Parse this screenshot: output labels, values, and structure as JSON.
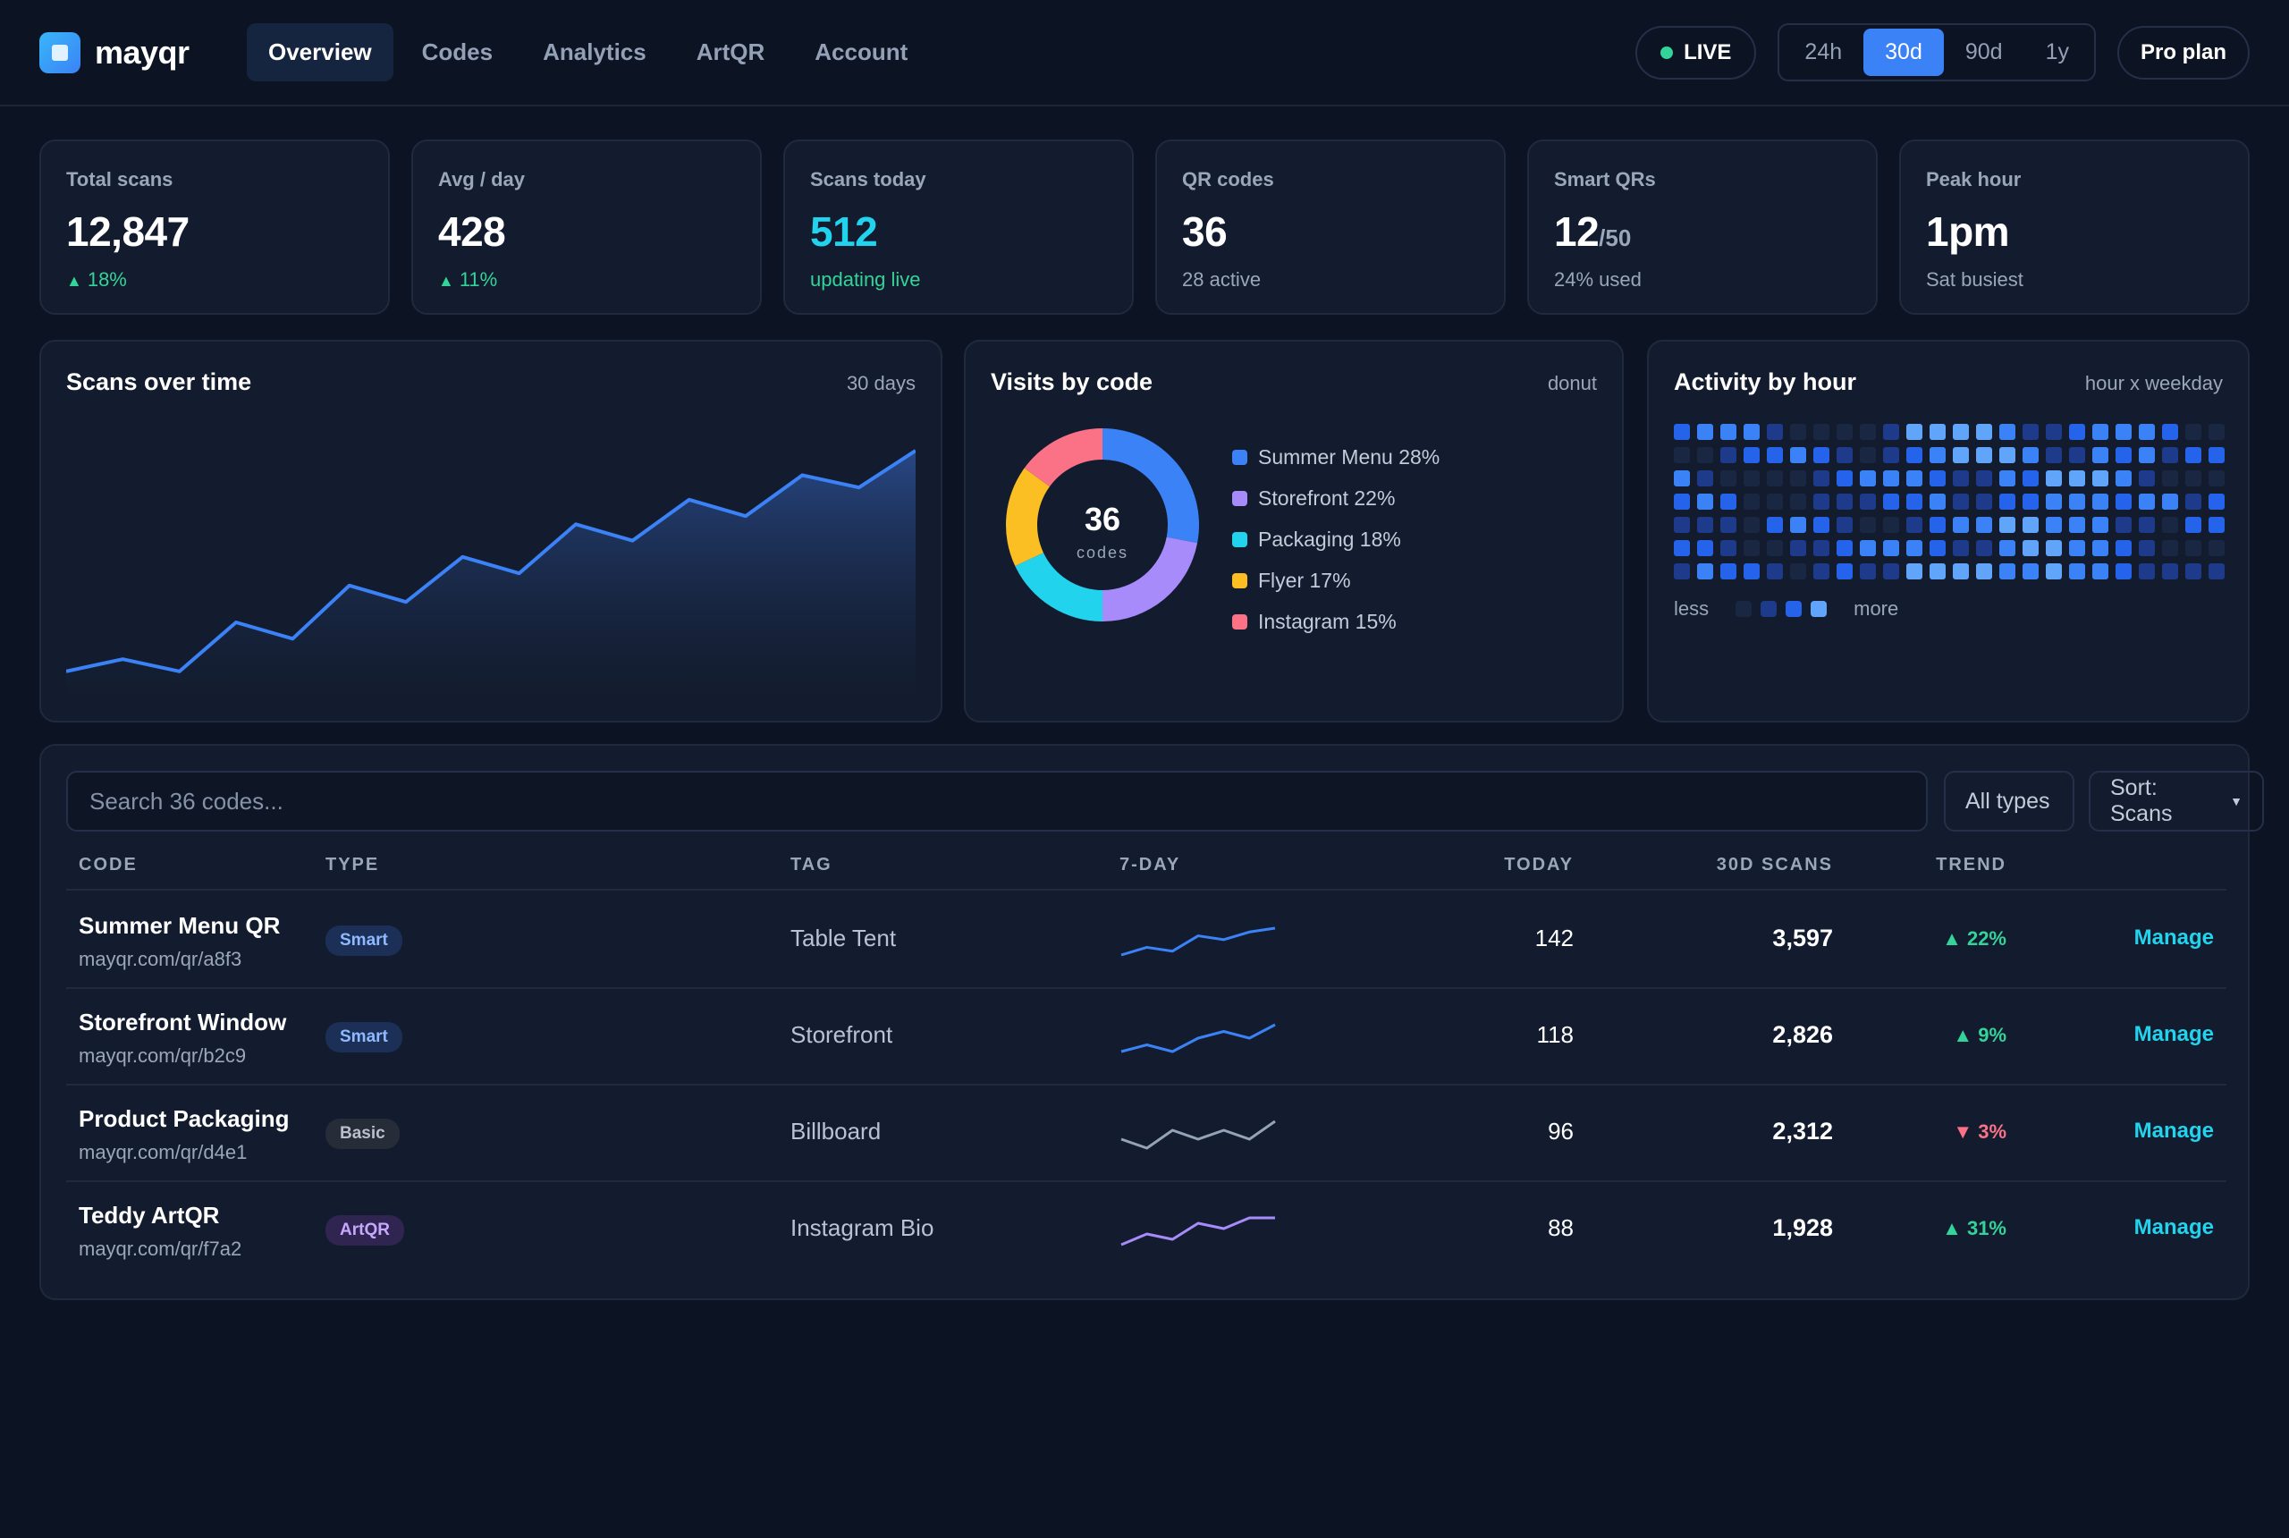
{
  "brand": {
    "name": "mayqr"
  },
  "nav": [
    {
      "label": "Overview",
      "active": true
    },
    {
      "label": "Codes",
      "active": false
    },
    {
      "label": "Analytics",
      "active": false
    },
    {
      "label": "ArtQR",
      "active": false
    },
    {
      "label": "Account",
      "active": false
    }
  ],
  "live": {
    "label": "LIVE"
  },
  "ranges": [
    {
      "label": "24h",
      "active": false
    },
    {
      "label": "30d",
      "active": true
    },
    {
      "label": "90d",
      "active": false
    },
    {
      "label": "1y",
      "active": false
    }
  ],
  "plan": {
    "label": "Pro plan"
  },
  "kpis": [
    {
      "label": "Total scans",
      "value": "12,847",
      "sub": "",
      "note": "18%",
      "note_up": true
    },
    {
      "label": "Avg / day",
      "value": "428",
      "sub": "",
      "note": "11%",
      "note_up": true
    },
    {
      "label": "Scans today",
      "value": "512",
      "sub": "",
      "note": "updating live",
      "note_up": false
    },
    {
      "label": "QR codes",
      "value": "36",
      "sub": "",
      "note": "28 active",
      "note_up": false
    },
    {
      "label": "Smart QRs",
      "value": "12",
      "sub": "/50",
      "note": "24% used",
      "note_up": false
    },
    {
      "label": "Peak hour",
      "value": "1pm",
      "sub": "",
      "note": "Sat busiest",
      "note_up": false
    }
  ],
  "scans_chart": {
    "title": "Scans over time",
    "subtitle": "30 days",
    "color": "#3b82f6"
  },
  "visits_chart": {
    "title": "Visits by code",
    "subtitle": "donut",
    "center_value": "36",
    "center_label": "codes"
  },
  "activity_chart": {
    "title": "Activity by hour",
    "subtitle": "hour x weekday",
    "legend_less": "less",
    "legend_more": "more"
  },
  "chart_data": [
    {
      "type": "area",
      "title": "Scans over time",
      "x": [
        1,
        2,
        3,
        4,
        5,
        6,
        7,
        8,
        9,
        10,
        11,
        12,
        13,
        14,
        15,
        16
      ],
      "values": [
        9,
        12,
        9,
        21,
        17,
        30,
        26,
        37,
        33,
        45,
        41,
        51,
        47,
        57,
        54,
        63
      ],
      "ylim": [
        0,
        70
      ]
    },
    {
      "type": "pie",
      "title": "Visits by code",
      "categories": [
        "Summer Menu",
        "Storefront",
        "Packaging",
        "Flyer",
        "Instagram"
      ],
      "values": [
        28,
        22,
        18,
        17,
        15
      ],
      "colors": [
        "#3b82f6",
        "#a78bfa",
        "#22d3ee",
        "#fbbf24",
        "#fb7185"
      ],
      "labels": [
        "Summer Menu 28%",
        "Storefront 22%",
        "Packaging 18%",
        "Flyer 17%",
        "Instagram 15%"
      ]
    },
    {
      "type": "heatmap",
      "title": "Activity by hour",
      "levels": [
        [
          2,
          3,
          3,
          3,
          1,
          0,
          0,
          0,
          0,
          1,
          4,
          4,
          4,
          4,
          3,
          1,
          1,
          2,
          3,
          3,
          3,
          2,
          0,
          0
        ],
        [
          0,
          0,
          1,
          2,
          2,
          3,
          2,
          1,
          0,
          1,
          2,
          3,
          4,
          4,
          4,
          3,
          1,
          1,
          3,
          2,
          3,
          1,
          2,
          2
        ],
        [
          3,
          1,
          0,
          0,
          0,
          0,
          1,
          2,
          3,
          3,
          3,
          2,
          1,
          1,
          3,
          2,
          4,
          4,
          4,
          3,
          1,
          0,
          0,
          0
        ],
        [
          2,
          3,
          2,
          0,
          0,
          0,
          1,
          1,
          1,
          2,
          2,
          3,
          1,
          1,
          2,
          2,
          3,
          3,
          3,
          2,
          3,
          3,
          1,
          2
        ],
        [
          1,
          1,
          1,
          0,
          2,
          3,
          2,
          1,
          0,
          0,
          1,
          2,
          3,
          3,
          4,
          4,
          3,
          3,
          3,
          1,
          1,
          0,
          2,
          2
        ],
        [
          2,
          2,
          1,
          0,
          0,
          1,
          1,
          2,
          3,
          3,
          3,
          2,
          1,
          1,
          3,
          4,
          4,
          3,
          3,
          2,
          1,
          0,
          0,
          0
        ],
        [
          1,
          3,
          2,
          2,
          1,
          0,
          1,
          2,
          1,
          1,
          4,
          4,
          4,
          4,
          3,
          3,
          4,
          3,
          3,
          2,
          1,
          1,
          1,
          1
        ]
      ],
      "palette": [
        "#1a2742",
        "#1e3a8a",
        "#2563eb",
        "#3b82f6",
        "#60a5fa"
      ]
    }
  ],
  "table": {
    "search_placeholder": "Search 36 codes...",
    "filter_types": "All types",
    "sort_label": "Sort: Scans",
    "headers": {
      "code": "CODE",
      "type": "TYPE",
      "tag": "TAG",
      "spark": "7-DAY",
      "today": "TODAY",
      "scans": "30D SCANS",
      "trend": "TREND"
    },
    "manage_label": "Manage",
    "rows": [
      {
        "name": "Summer Menu QR",
        "url": "mayqr.com/qr/a8f3",
        "type": "Smart",
        "type_class": "smart",
        "tag": "Table Tent",
        "today": "142",
        "scans": "3,597",
        "trend": "22%",
        "trend_up": true,
        "spark": [
          3,
          5,
          4,
          8,
          7,
          9,
          10
        ],
        "spark_color": "#3b82f6"
      },
      {
        "name": "Storefront Window",
        "url": "mayqr.com/qr/b2c9",
        "type": "Smart",
        "type_class": "smart",
        "tag": "Storefront",
        "today": "118",
        "scans": "2,826",
        "trend": "9%",
        "trend_up": true,
        "spark": [
          4,
          5,
          4,
          6,
          7,
          6,
          8
        ],
        "spark_color": "#3b82f6"
      },
      {
        "name": "Product Packaging",
        "url": "mayqr.com/qr/d4e1",
        "type": "Basic",
        "type_class": "basic",
        "tag": "Billboard",
        "today": "96",
        "scans": "2,312",
        "trend": "3%",
        "trend_up": false,
        "spark": [
          6,
          5,
          7,
          6,
          7,
          6,
          8
        ],
        "spark_color": "#94a3b8"
      },
      {
        "name": "Teddy ArtQR",
        "url": "mayqr.com/qr/f7a2",
        "type": "ArtQR",
        "type_class": "artqr",
        "tag": "Instagram Bio",
        "today": "88",
        "scans": "1,928",
        "trend": "31%",
        "trend_up": true,
        "spark": [
          3,
          5,
          4,
          7,
          6,
          8,
          8
        ],
        "spark_color": "#a78bfa"
      }
    ]
  }
}
